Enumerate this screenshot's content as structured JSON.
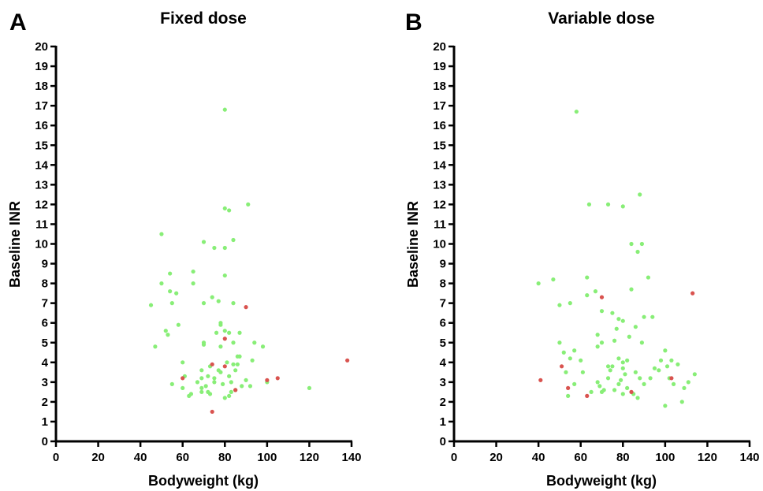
{
  "chart_data": [
    {
      "type": "scatter",
      "panel_label": "A",
      "title": "Fixed dose",
      "xlabel": "Bodyweight (kg)",
      "ylabel": "Baseline INR",
      "xlim": [
        0,
        140
      ],
      "ylim": [
        0,
        20
      ],
      "xticks": [
        0,
        20,
        40,
        60,
        80,
        100,
        120,
        140
      ],
      "yticks": [
        0,
        1,
        2,
        3,
        4,
        5,
        6,
        7,
        8,
        9,
        10,
        11,
        12,
        13,
        14,
        15,
        16,
        17,
        18,
        19,
        20
      ],
      "grid": false,
      "series": [
        {
          "color": "#88ee77",
          "points": [
            [
              45,
              6.9
            ],
            [
              47,
              4.8
            ],
            [
              50,
              10.5
            ],
            [
              50,
              8.0
            ],
            [
              52,
              5.6
            ],
            [
              53,
              5.4
            ],
            [
              54,
              8.5
            ],
            [
              54,
              7.6
            ],
            [
              55,
              7.0
            ],
            [
              55,
              2.9
            ],
            [
              57,
              7.5
            ],
            [
              58,
              5.9
            ],
            [
              60,
              4.0
            ],
            [
              60,
              2.7
            ],
            [
              61,
              3.3
            ],
            [
              63,
              2.3
            ],
            [
              64,
              2.4
            ],
            [
              65,
              8.6
            ],
            [
              65,
              8.0
            ],
            [
              67,
              3.0
            ],
            [
              69,
              3.6
            ],
            [
              69,
              3.2
            ],
            [
              69,
              2.7
            ],
            [
              69,
              2.5
            ],
            [
              70,
              10.1
            ],
            [
              70,
              7.0
            ],
            [
              70,
              5.0
            ],
            [
              70,
              4.9
            ],
            [
              71,
              2.8
            ],
            [
              72,
              3.3
            ],
            [
              72,
              2.5
            ],
            [
              73,
              2.4
            ],
            [
              73,
              3.8
            ],
            [
              74,
              7.3
            ],
            [
              75,
              9.8
            ],
            [
              75,
              3.2
            ],
            [
              75,
              3.0
            ],
            [
              76,
              5.5
            ],
            [
              77,
              3.6
            ],
            [
              77,
              7.1
            ],
            [
              78,
              5.9
            ],
            [
              78,
              6.0
            ],
            [
              78,
              4.8
            ],
            [
              78,
              3.5
            ],
            [
              79,
              2.9
            ],
            [
              80,
              16.8
            ],
            [
              80,
              11.8
            ],
            [
              80,
              9.8
            ],
            [
              80,
              8.4
            ],
            [
              80,
              5.6
            ],
            [
              80,
              2.2
            ],
            [
              81,
              4.0
            ],
            [
              82,
              11.7
            ],
            [
              82,
              5.5
            ],
            [
              82,
              3.3
            ],
            [
              82,
              2.3
            ],
            [
              83,
              3.0
            ],
            [
              83,
              2.5
            ],
            [
              84,
              10.2
            ],
            [
              84,
              7.0
            ],
            [
              84,
              5.0
            ],
            [
              84,
              3.9
            ],
            [
              85,
              2.6
            ],
            [
              85,
              3.6
            ],
            [
              86,
              4.3
            ],
            [
              86,
              3.9
            ],
            [
              87,
              5.5
            ],
            [
              87,
              4.3
            ],
            [
              88,
              2.8
            ],
            [
              90,
              3.1
            ],
            [
              91,
              12.0
            ],
            [
              92,
              2.8
            ],
            [
              93,
              4.1
            ],
            [
              94,
              5.0
            ],
            [
              98,
              4.8
            ],
            [
              100,
              3.0
            ],
            [
              120,
              2.7
            ]
          ]
        },
        {
          "color": "#d9534f",
          "points": [
            [
              60,
              3.2
            ],
            [
              74,
              3.9
            ],
            [
              74,
              1.5
            ],
            [
              80,
              5.2
            ],
            [
              80,
              3.8
            ],
            [
              85,
              2.6
            ],
            [
              90,
              6.8
            ],
            [
              100,
              3.1
            ],
            [
              105,
              3.2
            ],
            [
              138,
              4.1
            ]
          ]
        }
      ]
    },
    {
      "type": "scatter",
      "panel_label": "B",
      "title": "Variable dose",
      "xlabel": "Bodyweight (kg)",
      "ylabel": "Baseline INR",
      "xlim": [
        0,
        140
      ],
      "ylim": [
        0,
        20
      ],
      "xticks": [
        0,
        20,
        40,
        60,
        80,
        100,
        120,
        140
      ],
      "yticks": [
        0,
        1,
        2,
        3,
        4,
        5,
        6,
        7,
        8,
        9,
        10,
        11,
        12,
        13,
        14,
        15,
        16,
        17,
        18,
        19,
        20
      ],
      "grid": false,
      "series": [
        {
          "color": "#88ee77",
          "points": [
            [
              40,
              8.0
            ],
            [
              47,
              8.2
            ],
            [
              50,
              6.9
            ],
            [
              50,
              5.0
            ],
            [
              52,
              4.5
            ],
            [
              53,
              3.5
            ],
            [
              54,
              2.3
            ],
            [
              55,
              7.0
            ],
            [
              55,
              4.2
            ],
            [
              57,
              4.6
            ],
            [
              57,
              2.9
            ],
            [
              58,
              16.7
            ],
            [
              60,
              4.1
            ],
            [
              61,
              3.5
            ],
            [
              63,
              8.3
            ],
            [
              63,
              7.4
            ],
            [
              64,
              12.0
            ],
            [
              65,
              2.5
            ],
            [
              67,
              7.6
            ],
            [
              68,
              5.4
            ],
            [
              68,
              4.8
            ],
            [
              68,
              3.0
            ],
            [
              69,
              2.8
            ],
            [
              70,
              6.6
            ],
            [
              70,
              5.0
            ],
            [
              70,
              2.5
            ],
            [
              71,
              2.6
            ],
            [
              73,
              12.0
            ],
            [
              73,
              3.8
            ],
            [
              73,
              3.2
            ],
            [
              74,
              3.6
            ],
            [
              75,
              6.5
            ],
            [
              75,
              3.8
            ],
            [
              76,
              5.1
            ],
            [
              76,
              2.6
            ],
            [
              77,
              5.7
            ],
            [
              78,
              6.2
            ],
            [
              78,
              4.2
            ],
            [
              78,
              2.9
            ],
            [
              79,
              3.1
            ],
            [
              80,
              11.9
            ],
            [
              80,
              6.1
            ],
            [
              80,
              4.0
            ],
            [
              80,
              3.7
            ],
            [
              80,
              2.4
            ],
            [
              81,
              3.4
            ],
            [
              82,
              4.1
            ],
            [
              82,
              2.7
            ],
            [
              83,
              5.3
            ],
            [
              84,
              7.7
            ],
            [
              84,
              10.0
            ],
            [
              85,
              2.4
            ],
            [
              86,
              5.8
            ],
            [
              86,
              3.5
            ],
            [
              87,
              2.2
            ],
            [
              87,
              9.6
            ],
            [
              88,
              12.5
            ],
            [
              88,
              3.2
            ],
            [
              89,
              10.0
            ],
            [
              89,
              5.0
            ],
            [
              90,
              6.3
            ],
            [
              90,
              2.9
            ],
            [
              92,
              8.3
            ],
            [
              93,
              3.2
            ],
            [
              94,
              6.3
            ],
            [
              95,
              3.7
            ],
            [
              97,
              3.6
            ],
            [
              98,
              4.1
            ],
            [
              100,
              1.8
            ],
            [
              100,
              4.6
            ],
            [
              101,
              3.8
            ],
            [
              102,
              3.2
            ],
            [
              103,
              4.1
            ],
            [
              104,
              2.9
            ],
            [
              106,
              3.9
            ],
            [
              108,
              2.0
            ],
            [
              109,
              2.7
            ],
            [
              111,
              3.0
            ],
            [
              114,
              3.4
            ]
          ]
        },
        {
          "color": "#d9534f",
          "points": [
            [
              41,
              3.1
            ],
            [
              51,
              3.8
            ],
            [
              54,
              2.7
            ],
            [
              63,
              2.3
            ],
            [
              70,
              7.3
            ],
            [
              84,
              2.5
            ],
            [
              103,
              3.2
            ],
            [
              113,
              7.5
            ]
          ]
        }
      ]
    }
  ]
}
